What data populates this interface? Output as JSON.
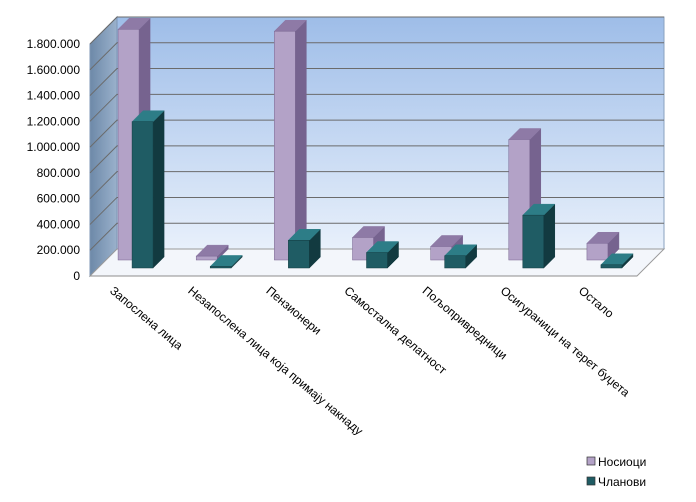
{
  "chart_data": {
    "type": "bar",
    "style": "3d-clustered-column",
    "categories": [
      "Запослена лица",
      "Незапослена лица која примају накнаду",
      "Пензионери",
      "Самостална делатност",
      "Пољопривредници",
      "Осигураници на терет буџета",
      "Остало"
    ],
    "series": [
      {
        "name": "Носиоци",
        "values": [
          1790000,
          30000,
          1775000,
          175000,
          105000,
          935000,
          130000
        ]
      },
      {
        "name": "Чланови",
        "values": [
          1135000,
          12000,
          215000,
          120000,
          95000,
          410000,
          25000
        ]
      }
    ],
    "y_ticks": [
      "0",
      "200.000",
      "400.000",
      "600.000",
      "800.000",
      "1.000.000",
      "1.200.000",
      "1.400.000",
      "1.600.000",
      "1.800.000"
    ],
    "ylim": [
      0,
      1800000
    ],
    "grid": true,
    "legend_position": "bottom-right",
    "colors": {
      "series_0_front": "#b3a2c7",
      "series_0_top": "#8e7aa6",
      "series_0_side": "#76638f",
      "series_1_front": "#1f5c64",
      "series_1_top": "#2d7d87",
      "series_1_side": "#123a40",
      "wall_top": "#9ebde8",
      "wall_bottom": "#e8f0fb",
      "grid": "#6b6b6b"
    }
  }
}
